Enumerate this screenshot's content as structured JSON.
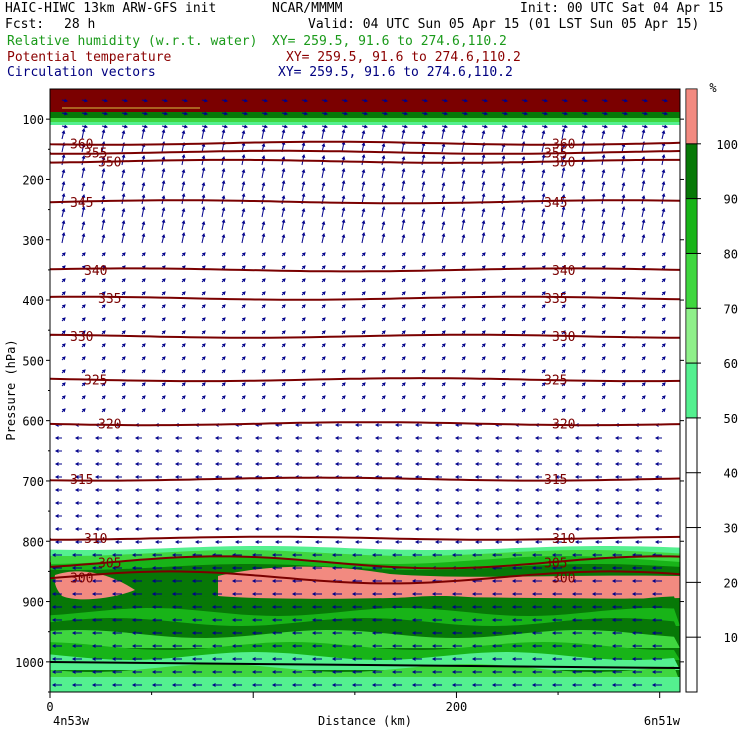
{
  "header": {
    "model": "HAIC-HIWC 13km ARW-GFS init",
    "org": "NCAR/MMMM",
    "init": "Init: 00 UTC Sat 04 Apr 15",
    "fcst_label": "Fcst:",
    "fcst_value": "28 h",
    "valid": "Valid: 04 UTC Sun 05 Apr 15 (01 LST Sun 05 Apr 15)",
    "fields": [
      {
        "name": "Relative humidity (w.r.t. water)",
        "xy": "XY= 259.5, 91.6 to 274.6,110.2",
        "color": "#1a9a1a"
      },
      {
        "name": "Potential temperature",
        "xy": "XY= 259.5, 91.6 to 274.6,110.2",
        "color": "#8b0000"
      },
      {
        "name": "Circulation vectors",
        "xy": "XY= 259.5, 91.6 to 274.6,110.2",
        "color": "#000080"
      }
    ]
  },
  "chart_data": {
    "type": "heatmap",
    "ylabel": "Pressure (hPa)",
    "xlabel": "Distance (km)",
    "x_tick_labels": [
      "0",
      "200"
    ],
    "x_ticks": [
      0,
      200
    ],
    "xlim": [
      0,
      310
    ],
    "y_tick_labels": [
      "100",
      "200",
      "300",
      "400",
      "500",
      "600",
      "700",
      "800",
      "900",
      "1000"
    ],
    "y_ticks": [
      100,
      200,
      300,
      400,
      500,
      600,
      700,
      800,
      900,
      1000
    ],
    "ylim": [
      1050,
      50
    ],
    "endpoints": {
      "left": "4n53w",
      "right": "6n51w"
    },
    "colorbar": {
      "unit": "%",
      "tick_labels": [
        "10",
        "20",
        "30",
        "40",
        "50",
        "60",
        "70",
        "80",
        "90",
        "100"
      ],
      "levels": [
        {
          "from": 50,
          "to": 60,
          "color": "#54f08f"
        },
        {
          "from": 60,
          "to": 70,
          "color": "#8ff08a"
        },
        {
          "from": 70,
          "to": 80,
          "color": "#3fd63f"
        },
        {
          "from": 80,
          "to": 90,
          "color": "#18b418"
        },
        {
          "from": 90,
          "to": 100,
          "color": "#077807"
        },
        {
          "from": 100,
          "to": 110,
          "color": "#f28a80"
        }
      ]
    },
    "theta_isolines": [
      {
        "label": "360",
        "p": 140
      },
      {
        "label": "355",
        "p": 155
      },
      {
        "label": "350",
        "p": 170
      },
      {
        "label": "345",
        "p": 237
      },
      {
        "label": "340",
        "p": 350
      },
      {
        "label": "335",
        "p": 397
      },
      {
        "label": "330",
        "p": 460
      },
      {
        "label": "325",
        "p": 532
      },
      {
        "label": "320",
        "p": 605
      },
      {
        "label": "315",
        "p": 697
      },
      {
        "label": "310",
        "p": 795
      },
      {
        "label": "305",
        "p": 835
      },
      {
        "label": "300",
        "p": 860
      }
    ],
    "theta_color": "#7a0000",
    "vector_color": "#00008b"
  }
}
